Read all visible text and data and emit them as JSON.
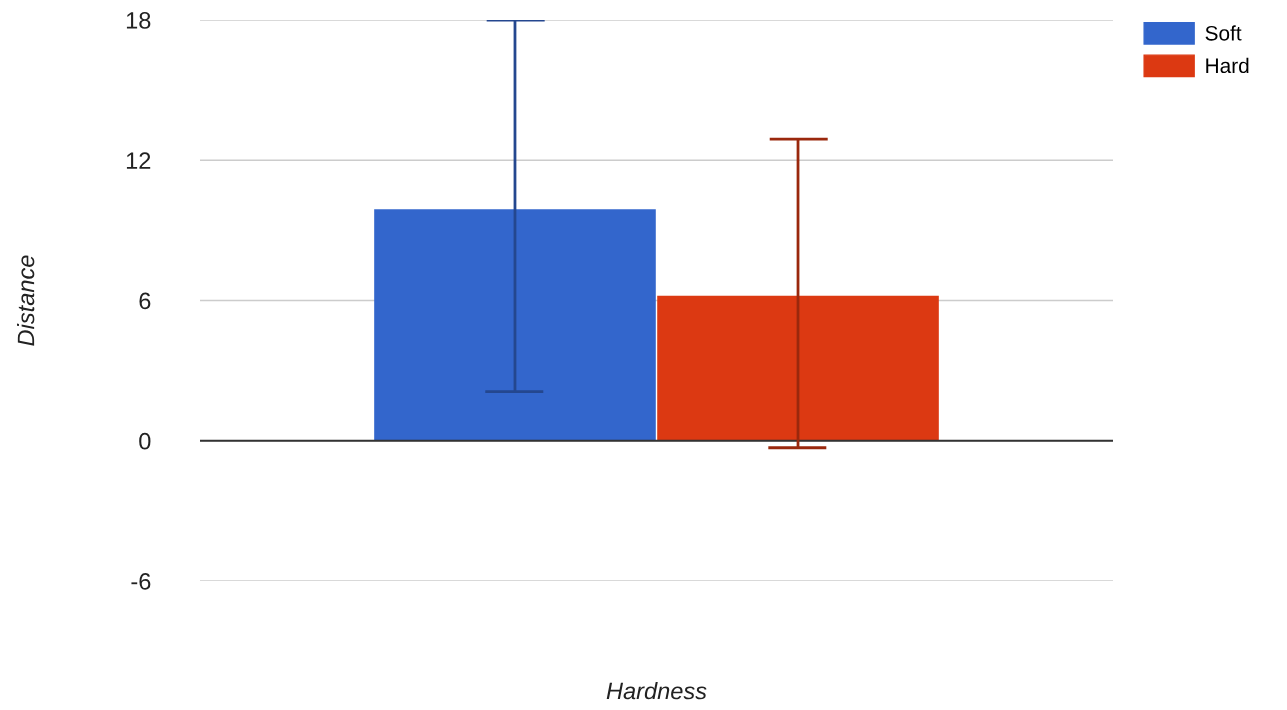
{
  "chart_data": {
    "type": "bar",
    "categories": [
      null
    ],
    "xlabel": "Hardness",
    "ylabel": "Distance",
    "series": [
      {
        "name": "Soft",
        "color": "#3366cc",
        "values": [
          9.9
        ],
        "errors": [
          [
            2.1,
            18.0
          ]
        ]
      },
      {
        "name": "Hard",
        "color": "#dc3912",
        "values": [
          6.2
        ],
        "errors": [
          [
            -0.3,
            12.9
          ]
        ]
      }
    ],
    "ylim": [
      -6,
      18
    ],
    "yticks": [
      -6,
      0,
      6,
      12,
      18
    ],
    "grid": "y",
    "legend": "top right"
  }
}
